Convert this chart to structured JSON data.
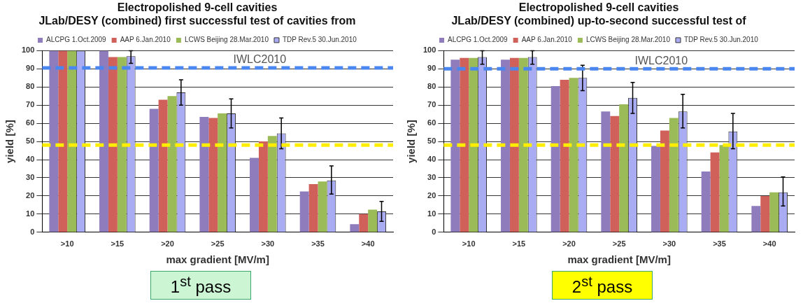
{
  "chart_data": [
    {
      "type": "bar",
      "title": "Electropolished 9-cell cavities",
      "subtitle": "JLab/DESY (combined) first successful test of cavities from",
      "xlabel": "max gradient [MV/m]",
      "ylabel": "yield [%]",
      "categories": [
        ">10",
        ">15",
        ">20",
        ">25",
        ">30",
        ">35",
        ">40"
      ],
      "series": [
        {
          "name": "ALCPG 1.Oct.2009",
          "color": "#8e7cbc",
          "values": [
            100,
            100,
            68,
            63.5,
            41,
            22.5,
            4.5
          ]
        },
        {
          "name": "AAP 6.Jan.2010",
          "color": "#d0605a",
          "values": [
            100,
            96.5,
            73,
            63,
            50,
            26.5,
            10
          ]
        },
        {
          "name": "LCWS Beijing 28.Mar.2010",
          "color": "#9bbb59",
          "values": [
            100,
            96.5,
            75,
            65.5,
            53,
            28,
            12.5
          ]
        },
        {
          "name": "TDP Rev.5 30.Jun.2010",
          "color": "#a9abf3",
          "values": [
            100,
            97,
            77,
            65.5,
            54.5,
            28.5,
            11.5
          ],
          "errors": [
            null,
            [
              93,
              100
            ],
            [
              70,
              84
            ],
            [
              57.5,
              73.5
            ],
            [
              46,
              63
            ],
            [
              21,
              36.5
            ],
            [
              6,
              17
            ]
          ]
        }
      ],
      "ylim": [
        0,
        100
      ],
      "yticks": [
        0,
        10,
        20,
        30,
        40,
        50,
        60,
        70,
        80,
        90,
        100
      ],
      "grid": "y",
      "legend": "top",
      "ref_lines": [
        {
          "axis": "y",
          "value": 90.5,
          "label": "IWLC2010",
          "color": "#4a86f0",
          "line_style": "dashed"
        },
        {
          "axis": "y",
          "value": 48,
          "label": null,
          "color": "#ffee00",
          "line_style": "dashed"
        }
      ],
      "annotations": [
        "1$^{st}$ pass"
      ]
    },
    {
      "type": "bar",
      "title": "Electropolished 9-cell cavities",
      "subtitle": "JLab/DESY (combined) up-to-second successful test of",
      "xlabel": "max gradient [MV/m]",
      "ylabel": "yield [%]",
      "categories": [
        ">10",
        ">15",
        ">20",
        ">25",
        ">30",
        ">35",
        ">40"
      ],
      "series": [
        {
          "name": "ALCPG 1.Oct.2009",
          "color": "#8e7cbc",
          "values": [
            95,
            95,
            80.5,
            66.5,
            47.5,
            33.5,
            14.5
          ]
        },
        {
          "name": "AAP 6.Jan.2010",
          "color": "#d0605a",
          "values": [
            96,
            96,
            84,
            64,
            56,
            44,
            20
          ]
        },
        {
          "name": "LCWS Beijing 28.Mar.2010",
          "color": "#9bbb59",
          "values": [
            96,
            96,
            85,
            70.5,
            63,
            48,
            22
          ]
        },
        {
          "name": "TDP Rev.5 30.Jun.2010",
          "color": "#a9abf3",
          "values": [
            96.5,
            96.5,
            85,
            74,
            66.5,
            55.5,
            22
          ],
          "errors": [
            [
              92.5,
              100
            ],
            [
              92.5,
              100
            ],
            [
              78,
              92
            ],
            [
              65.5,
              82.5
            ],
            [
              57.5,
              76
            ],
            [
              46,
              65.5
            ],
            [
              14.5,
              30.5
            ]
          ]
        }
      ],
      "ylim": [
        0,
        100
      ],
      "yticks": [
        0,
        10,
        20,
        30,
        40,
        50,
        60,
        70,
        80,
        90,
        100
      ],
      "grid": "y",
      "legend": "top",
      "ref_lines": [
        {
          "axis": "y",
          "value": 90,
          "label": "IWLC2010",
          "color": "#4a86f0",
          "line_style": "dashed"
        },
        {
          "axis": "y",
          "value": 48,
          "label": null,
          "color": "#ffee00",
          "line_style": "dashed"
        }
      ],
      "annotations": [
        "2$^{st}$ pass"
      ]
    }
  ]
}
